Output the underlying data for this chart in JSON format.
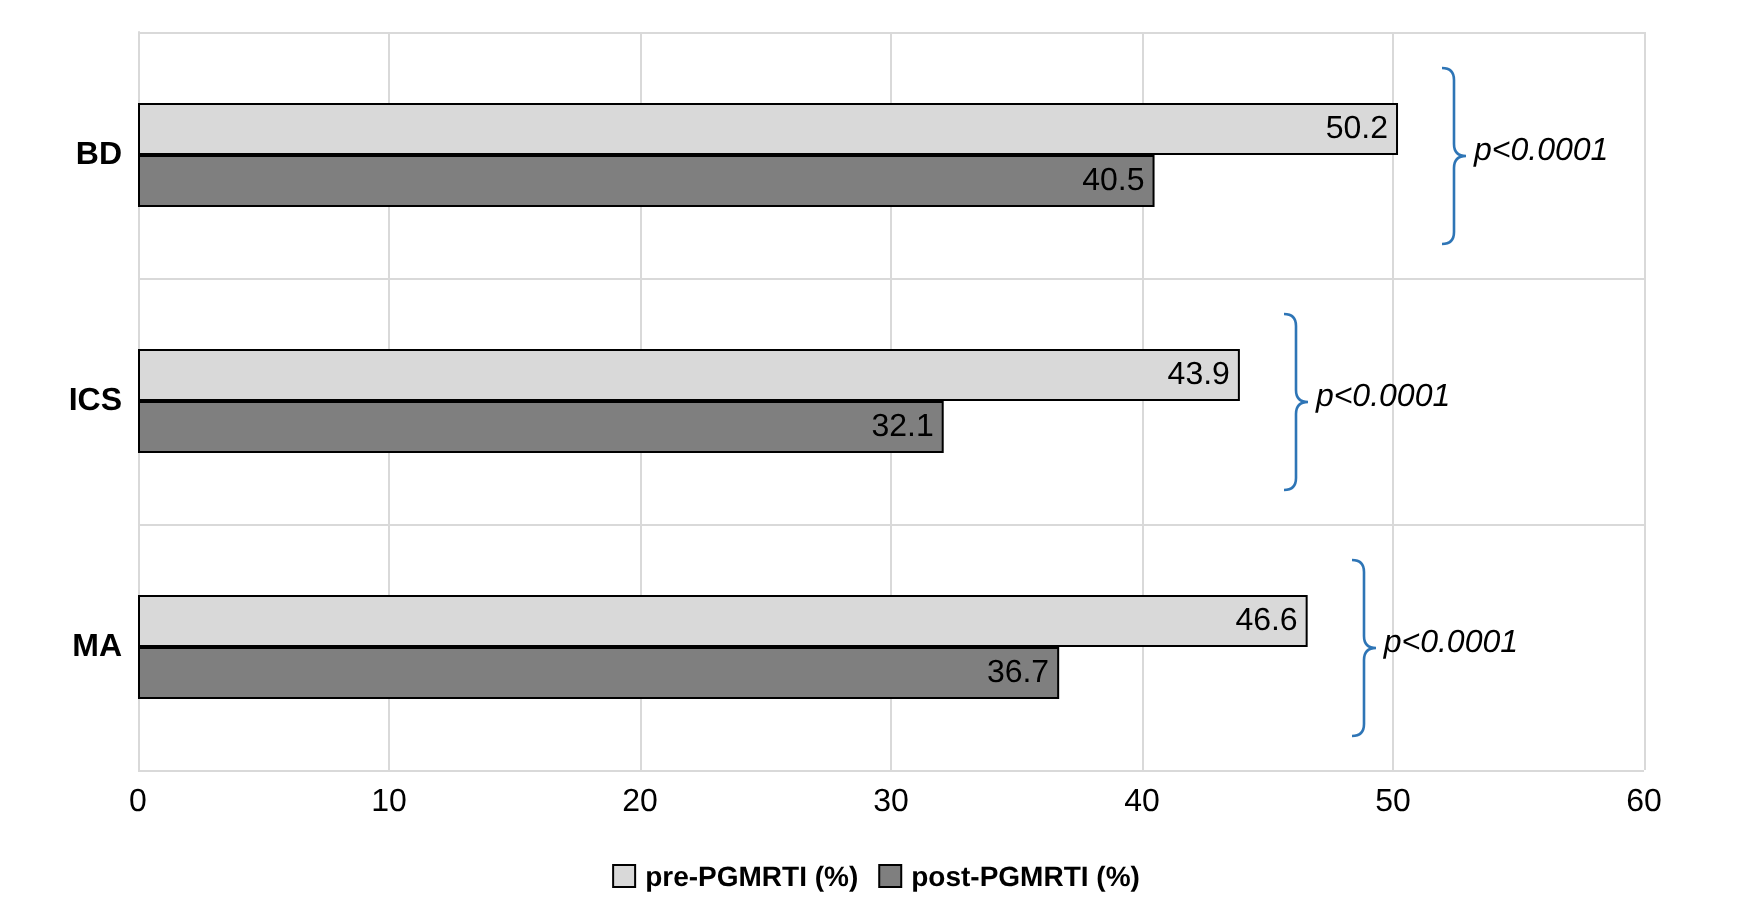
{
  "chart_data": {
    "type": "bar",
    "orientation": "horizontal",
    "categories": [
      "BD",
      "ICS",
      "MA"
    ],
    "series": [
      {
        "name": "pre-PGMRTI (%)",
        "color": "#d9d9d9",
        "values": [
          50.2,
          43.9,
          46.6
        ]
      },
      {
        "name": "post-PGMRTI (%)",
        "color": "#7f7f7f",
        "values": [
          40.5,
          32.1,
          36.7
        ]
      }
    ],
    "xlim": [
      0,
      60
    ],
    "xticks": [
      0,
      10,
      20,
      30,
      40,
      50,
      60
    ],
    "grid": true,
    "legend": "bottom",
    "data_labels": true,
    "annotations": [
      "p<0.0001",
      "p<0.0001",
      "p<0.0001"
    ]
  }
}
